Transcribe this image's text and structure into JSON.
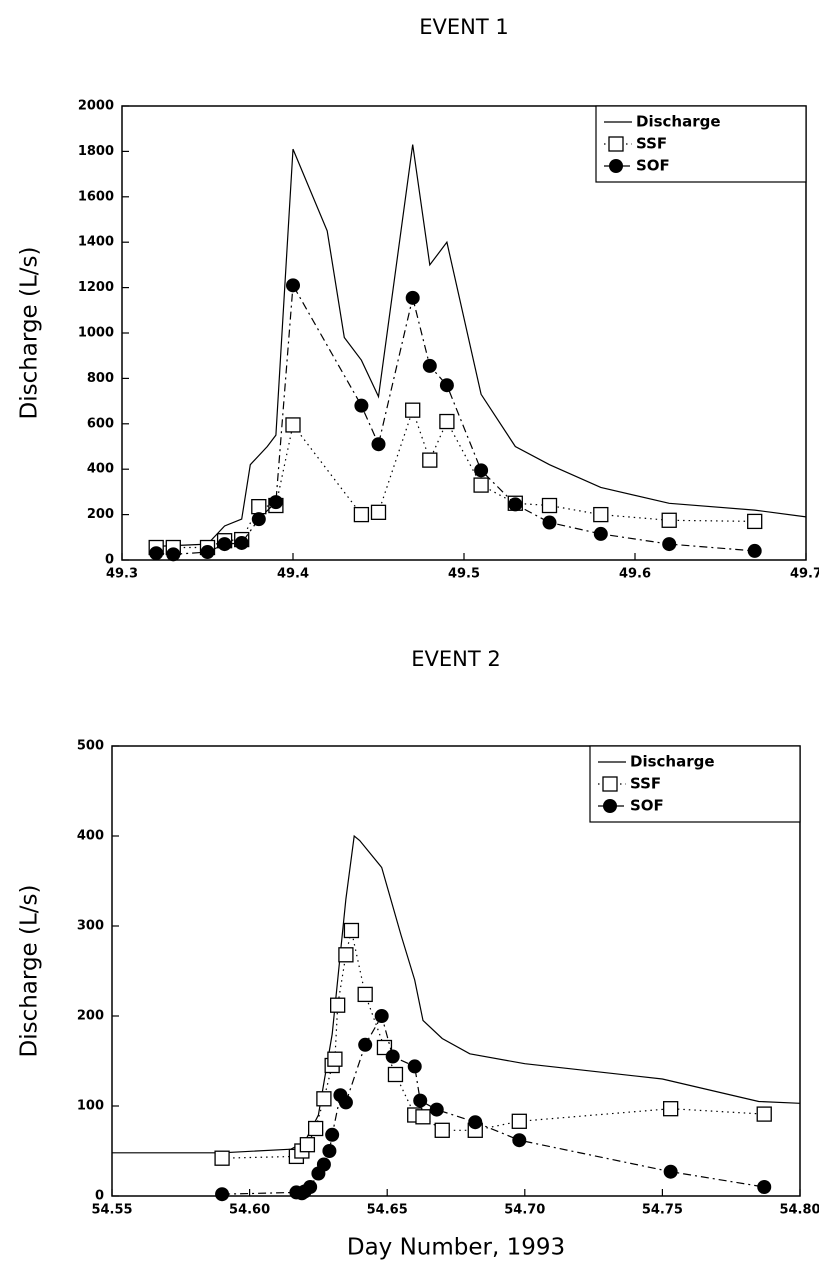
{
  "chart_data": [
    {
      "type": "line",
      "title": "EVENT 1",
      "ylabel": "Discharge (L/s)",
      "xlim": [
        49.3,
        49.7
      ],
      "xticks": [
        49.3,
        49.4,
        49.5,
        49.6,
        49.7
      ],
      "ylim": [
        0,
        2000
      ],
      "yticks": [
        0,
        200,
        400,
        600,
        800,
        1000,
        1200,
        1400,
        1600,
        1800,
        2000
      ],
      "legend": "upper right",
      "series": [
        {
          "name": "Discharge",
          "color": "#000000",
          "line_style": "solid",
          "marker": "none",
          "x": [
            49.32,
            49.35,
            49.36,
            49.37,
            49.375,
            49.385,
            49.39,
            49.4,
            49.42,
            49.43,
            49.44,
            49.45,
            49.47,
            49.48,
            49.49,
            49.51,
            49.53,
            49.55,
            49.58,
            49.62,
            49.67,
            49.7
          ],
          "values": [
            60,
            70,
            150,
            180,
            420,
            500,
            550,
            1810,
            1450,
            980,
            880,
            720,
            1830,
            1300,
            1400,
            730,
            500,
            420,
            320,
            250,
            220,
            190
          ]
        },
        {
          "name": "SSF",
          "color": "#000000",
          "line_style": "dotted",
          "marker": "square",
          "x": [
            49.32,
            49.33,
            49.35,
            49.36,
            49.37,
            49.38,
            49.39,
            49.4,
            49.44,
            49.45,
            49.47,
            49.48,
            49.49,
            49.51,
            49.53,
            49.55,
            49.58,
            49.62,
            49.67
          ],
          "values": [
            55,
            55,
            55,
            85,
            90,
            235,
            240,
            595,
            200,
            210,
            660,
            440,
            610,
            330,
            250,
            240,
            200,
            175,
            170
          ]
        },
        {
          "name": "SOF",
          "color": "#000000",
          "line_style": "dashdot",
          "marker": "circle",
          "x": [
            49.32,
            49.33,
            49.35,
            49.36,
            49.37,
            49.38,
            49.39,
            49.4,
            49.44,
            49.45,
            49.47,
            49.48,
            49.49,
            49.51,
            49.53,
            49.55,
            49.58,
            49.62,
            49.67
          ],
          "values": [
            30,
            25,
            35,
            70,
            75,
            180,
            255,
            1210,
            680,
            510,
            1155,
            855,
            770,
            395,
            245,
            165,
            115,
            70,
            40
          ]
        }
      ]
    },
    {
      "type": "line",
      "title": "EVENT 2",
      "ylabel": "Discharge (L/s)",
      "xlabel": "Day Number, 1993",
      "xlim": [
        54.55,
        54.8
      ],
      "xticks": [
        54.55,
        {
          "value": 54.6,
          "label": "54.60"
        },
        54.65,
        {
          "value": 54.7,
          "label": "54.70"
        },
        54.75,
        {
          "value": 54.8,
          "label": "54.80"
        }
      ],
      "ylim": [
        0,
        500
      ],
      "yticks": [
        0,
        100,
        200,
        300,
        400,
        500
      ],
      "legend": "upper right",
      "series": [
        {
          "name": "Discharge",
          "color": "#000000",
          "line_style": "solid",
          "marker": "none",
          "x": [
            54.55,
            54.59,
            54.615,
            54.62,
            54.625,
            54.63,
            54.635,
            54.638,
            54.64,
            54.648,
            54.655,
            54.66,
            54.663,
            54.67,
            54.68,
            54.7,
            54.75,
            54.785,
            54.8
          ],
          "values": [
            48,
            48,
            52,
            60,
            90,
            180,
            330,
            400,
            395,
            365,
            290,
            240,
            195,
            175,
            158,
            147,
            130,
            105,
            103
          ]
        },
        {
          "name": "SSF",
          "color": "#000000",
          "line_style": "dotted",
          "marker": "square",
          "x": [
            54.59,
            54.617,
            54.619,
            54.621,
            54.624,
            54.627,
            54.63,
            54.631,
            54.632,
            54.635,
            54.637,
            54.642,
            54.649,
            54.653,
            54.66,
            54.663,
            54.67,
            54.682,
            54.698,
            54.753,
            54.787
          ],
          "values": [
            42,
            44,
            50,
            57,
            75,
            108,
            145,
            152,
            212,
            268,
            295,
            224,
            165,
            135,
            90,
            88,
            73,
            73,
            83,
            97,
            91
          ]
        },
        {
          "name": "SOF",
          "color": "#000000",
          "line_style": "dashdot",
          "marker": "circle",
          "x": [
            54.59,
            54.617,
            54.619,
            54.62,
            54.622,
            54.625,
            54.627,
            54.629,
            54.63,
            54.633,
            54.635,
            54.642,
            54.648,
            54.652,
            54.66,
            54.662,
            54.668,
            54.682,
            54.698,
            54.753,
            54.787
          ],
          "values": [
            2,
            4,
            3,
            5,
            10,
            25,
            35,
            50,
            68,
            112,
            104,
            168,
            200,
            155,
            144,
            106,
            96,
            82,
            62,
            27,
            10
          ]
        }
      ]
    }
  ]
}
